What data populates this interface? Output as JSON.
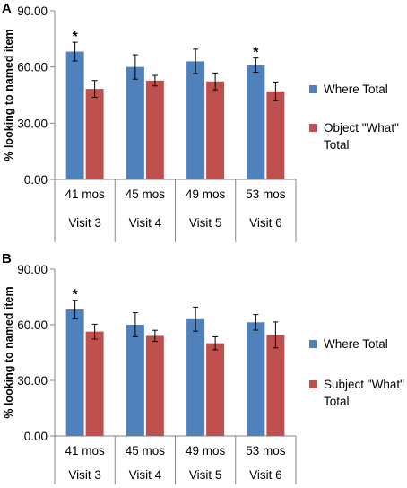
{
  "colors": {
    "series1": "#4F81BD",
    "series2": "#C0504D",
    "axis": "#868686"
  },
  "chart_data": [
    {
      "type": "bar",
      "panel_label": "A",
      "ylabel": "% looking to named item",
      "ylim": [
        0,
        90
      ],
      "yticks": [
        "0.00",
        "30.00",
        "60.00",
        "90.00"
      ],
      "categories": [
        "41 mos",
        "45 mos",
        "49 mos",
        "53 mos"
      ],
      "category_groups": [
        "Visit 3",
        "Visit 4",
        "Visit 5",
        "Visit 6"
      ],
      "series": [
        {
          "name": "Where Total",
          "values": [
            68.2,
            60.0,
            63.0,
            61.0
          ],
          "errors": [
            5.0,
            6.5,
            6.5,
            3.8
          ]
        },
        {
          "name": "Object \"What\" Total",
          "values": [
            48.3,
            52.7,
            52.3,
            47.0
          ],
          "errors": [
            4.5,
            2.8,
            4.5,
            5.0
          ]
        }
      ],
      "significance": [
        true,
        false,
        false,
        true
      ],
      "significance_marker": "*",
      "legend_position": "right",
      "grid": false
    },
    {
      "type": "bar",
      "panel_label": "B",
      "ylabel": "% looking to named item",
      "ylim": [
        0,
        90
      ],
      "yticks": [
        "0.00",
        "30.00",
        "60.00",
        "90.00"
      ],
      "categories": [
        "41 mos",
        "45 mos",
        "49 mos",
        "53 mos"
      ],
      "category_groups": [
        "Visit 3",
        "Visit 4",
        "Visit 5",
        "Visit 6"
      ],
      "series": [
        {
          "name": "Where Total",
          "values": [
            68.2,
            60.0,
            63.0,
            61.3
          ],
          "errors": [
            5.0,
            6.5,
            6.5,
            4.2
          ]
        },
        {
          "name": "Subject \"What\" Total",
          "values": [
            56.3,
            54.0,
            50.0,
            54.5
          ],
          "errors": [
            4.0,
            3.0,
            3.5,
            7.0
          ]
        }
      ],
      "significance": [
        true,
        false,
        false,
        false
      ],
      "significance_marker": "*",
      "legend_position": "right",
      "grid": false
    }
  ]
}
